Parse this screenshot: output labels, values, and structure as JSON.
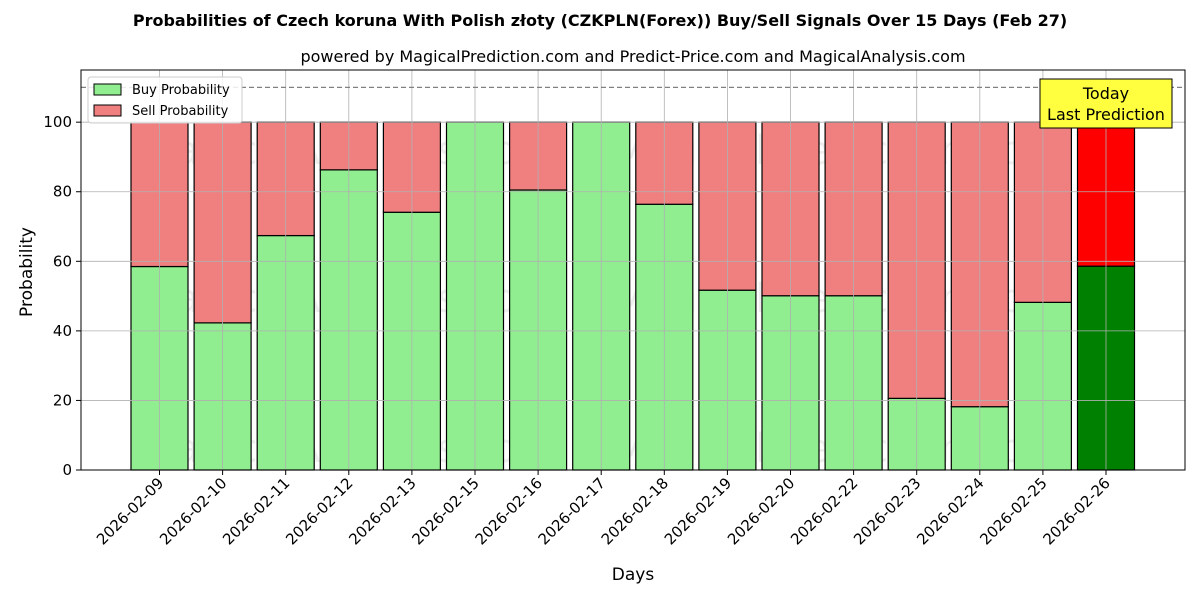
{
  "chart_data": {
    "type": "bar",
    "stacked": true,
    "title": "Probabilities of Czech koruna With Polish złoty (CZKPLN(Forex)) Buy/Sell Signals Over 15 Days (Feb 27)",
    "subtitle": "powered by MagicalPrediction.com and Predict-Price.com and MagicalAnalysis.com",
    "xlabel": "Days",
    "ylabel": "Probability",
    "ylim": [
      0,
      115
    ],
    "yticks": [
      0,
      20,
      40,
      60,
      80,
      100
    ],
    "reference_line": 110,
    "grid": true,
    "legend_position": "top-left",
    "categories": [
      "2026-02-09",
      "2026-02-10",
      "2026-02-11",
      "2026-02-12",
      "2026-02-13",
      "2026-02-15",
      "2026-02-16",
      "2026-02-17",
      "2026-02-18",
      "2026-02-19",
      "2026-02-20",
      "2026-02-22",
      "2026-02-23",
      "2026-02-24",
      "2026-02-25",
      "2026-02-26"
    ],
    "series": [
      {
        "name": "Buy Probability",
        "color": "#90ee90",
        "highlight_color": "#008000",
        "values": [
          58.5,
          42.3,
          67.4,
          86.3,
          74.1,
          100,
          80.5,
          100,
          76.4,
          51.7,
          50.1,
          50.1,
          20.6,
          18.2,
          48.2,
          58.6
        ]
      },
      {
        "name": "Sell Probability",
        "color": "#f08080",
        "highlight_color": "#ff0000",
        "values": [
          41.5,
          57.7,
          32.6,
          13.7,
          25.9,
          0,
          19.5,
          0,
          23.6,
          48.3,
          49.9,
          49.9,
          79.4,
          81.8,
          51.8,
          41.4
        ]
      }
    ],
    "annotation": {
      "line1": "Today",
      "line2": "Last Prediction",
      "color": "#ffff40"
    },
    "watermarks": [
      "MagicalAnalysis.com",
      "MagicalPrediction.com"
    ]
  }
}
